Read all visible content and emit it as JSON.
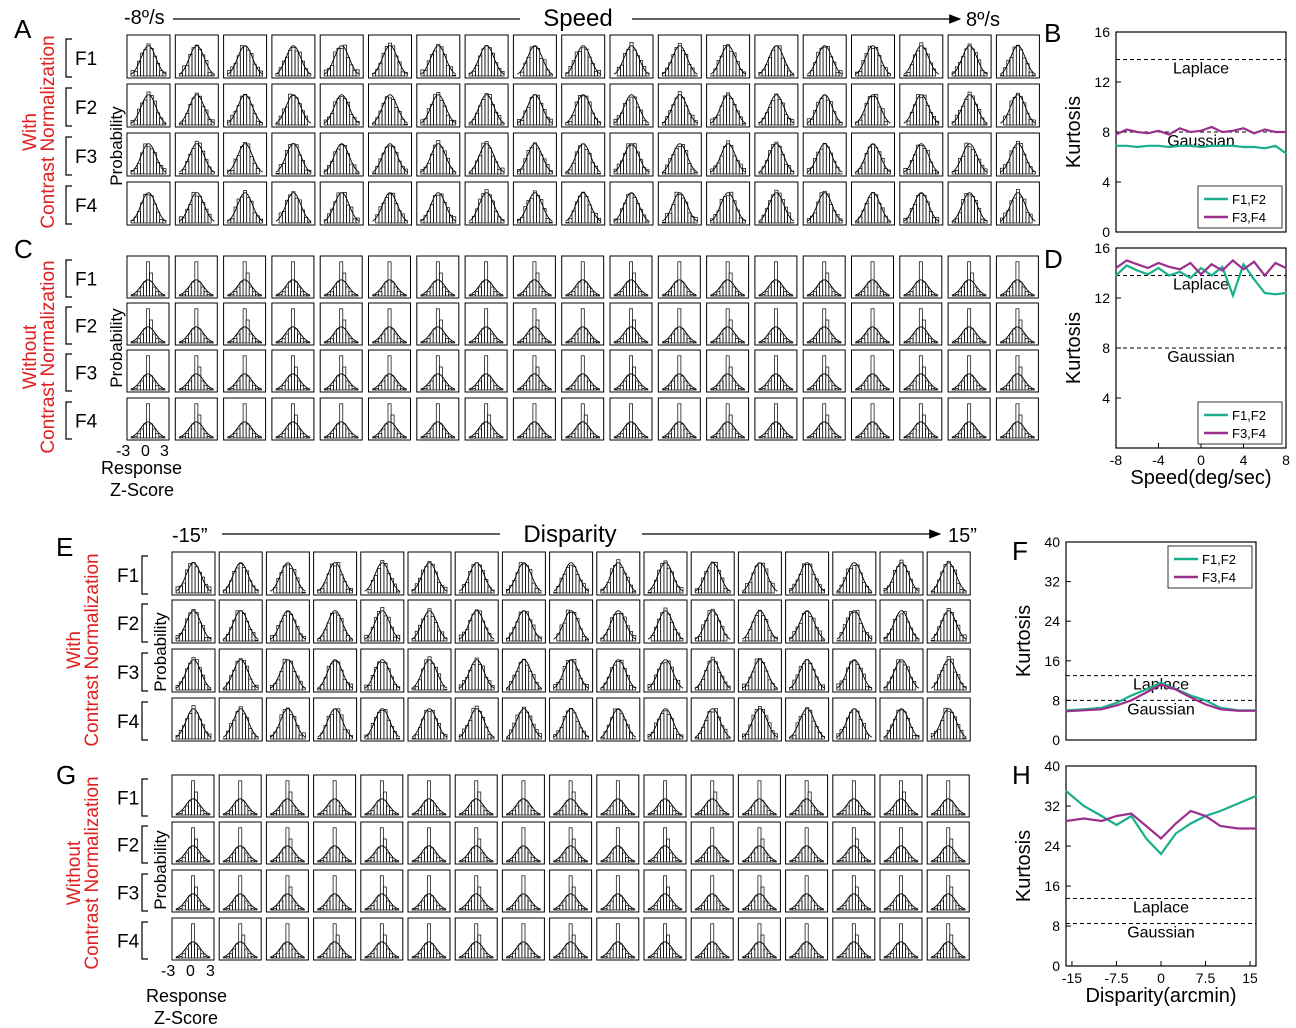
{
  "figure": {
    "panel_letters": [
      "A",
      "B",
      "C",
      "D",
      "E",
      "F",
      "G",
      "H"
    ],
    "speed_block": {
      "axis_title": "Speed",
      "left_label": "-8º/s",
      "right_label": "8º/s",
      "with_label_1": "With",
      "with_label_2": "Contrast Normalization",
      "without_label_1": "Without",
      "without_label_2": "Contrast Normalization",
      "row_labels": [
        "F1",
        "F2",
        "F3",
        "F4"
      ],
      "prob_label": "Probability",
      "ticks": [
        "-3",
        "0",
        "3"
      ],
      "xlabel_1": "Response",
      "xlabel_2": "Z-Score"
    },
    "disp_block": {
      "axis_title": "Disparity",
      "left_label": "-15”",
      "right_label": "15”",
      "with_label_1": "With",
      "with_label_2": "Contrast Normalization",
      "without_label_1": "Without",
      "without_label_2": "Contrast Normalization",
      "row_labels": [
        "F1",
        "F2",
        "F3",
        "F4"
      ],
      "prob_label": "Probability",
      "ticks": [
        "-3",
        "0",
        "3"
      ],
      "xlabel_1": "Response",
      "xlabel_2": "Z-Score"
    }
  },
  "colors": {
    "teal": "#1aaf8b",
    "purple": "#9b2f8f",
    "red": "#e02020"
  },
  "chart_data": [
    {
      "panel": "B",
      "type": "line",
      "ylabel": "Kurtosis",
      "xlabel": "",
      "xlim": [
        -8,
        8
      ],
      "ylim": [
        0,
        16
      ],
      "yticks": [
        0,
        4,
        8,
        12,
        16
      ],
      "xticks": [],
      "ref_lines": [
        {
          "label": "Laplace",
          "y": 13.8
        },
        {
          "label": "Gaussian",
          "y": 8.0
        }
      ],
      "legend": {
        "position": "bottom-right"
      },
      "series": [
        {
          "name": "F1,F2",
          "color": "#1aaf8b",
          "x": [
            -8,
            -7,
            -6,
            -5,
            -4,
            -3,
            -2,
            -1,
            0,
            1,
            2,
            3,
            4,
            5,
            6,
            7,
            8
          ],
          "y": [
            6.9,
            6.9,
            6.8,
            6.9,
            6.9,
            6.8,
            6.9,
            6.9,
            6.8,
            6.9,
            6.9,
            6.9,
            6.8,
            6.8,
            6.7,
            6.9,
            6.3
          ]
        },
        {
          "name": "F3,F4",
          "color": "#9b2f8f",
          "x": [
            -8,
            -7,
            -6,
            -5,
            -4,
            -3,
            -2,
            -1,
            0,
            1,
            2,
            3,
            4,
            5,
            6,
            7,
            8
          ],
          "y": [
            7.8,
            8.2,
            8.0,
            7.9,
            8.1,
            7.8,
            8.3,
            8.0,
            8.1,
            8.4,
            8.0,
            8.1,
            8.3,
            7.9,
            8.2,
            8.0,
            8.0
          ]
        }
      ]
    },
    {
      "panel": "D",
      "type": "line",
      "ylabel": "Kurtosis",
      "xlabel": "Speed(deg/sec)",
      "xlim": [
        -8,
        8
      ],
      "ylim": [
        0,
        16
      ],
      "yticks": [
        4,
        8,
        12,
        16
      ],
      "xticks": [
        -8,
        -4,
        0,
        4,
        8
      ],
      "ref_lines": [
        {
          "label": "Laplace",
          "y": 13.8
        },
        {
          "label": "Gaussian",
          "y": 8.0
        }
      ],
      "legend": {
        "position": "bottom-right"
      },
      "series": [
        {
          "name": "F1,F2",
          "color": "#1aaf8b",
          "x": [
            -8,
            -7,
            -6,
            -5,
            -4,
            -3,
            -2,
            -1,
            0,
            1,
            2,
            3,
            4,
            5,
            6,
            7,
            8
          ],
          "y": [
            13.8,
            14.6,
            14.2,
            13.9,
            14.4,
            13.8,
            14.1,
            13.6,
            14.4,
            13.8,
            14.5,
            12.2,
            14.7,
            13.5,
            12.4,
            12.3,
            12.4
          ]
        },
        {
          "name": "F3,F4",
          "color": "#9b2f8f",
          "x": [
            -8,
            -7,
            -6,
            -5,
            -4,
            -3,
            -2,
            -1,
            0,
            1,
            2,
            3,
            4,
            5,
            6,
            7,
            8
          ],
          "y": [
            14.4,
            15.0,
            14.7,
            14.4,
            14.8,
            14.5,
            14.3,
            14.8,
            13.9,
            14.7,
            14.2,
            15.0,
            14.3,
            14.9,
            13.8,
            14.8,
            14.4
          ]
        }
      ]
    },
    {
      "panel": "F",
      "type": "line",
      "ylabel": "Kurtosis",
      "xlabel": "",
      "xlim": [
        -16,
        16
      ],
      "ylim": [
        0,
        40
      ],
      "yticks": [
        0,
        8,
        16,
        24,
        32,
        40
      ],
      "xticks": [],
      "ref_lines": [
        {
          "label": "Laplace",
          "y": 13.0
        },
        {
          "label": "Gaussian",
          "y": 8.0
        }
      ],
      "legend": {
        "position": "top-right"
      },
      "series": [
        {
          "name": "F1,F2",
          "color": "#1aaf8b",
          "x": [
            -16,
            -13,
            -10,
            -7.5,
            -5,
            -2.5,
            0,
            2.5,
            5,
            7.5,
            10,
            13,
            16
          ],
          "y": [
            6.0,
            6.2,
            6.5,
            7.5,
            9.0,
            10.2,
            11.6,
            10.3,
            9.0,
            8.0,
            6.5,
            6.0,
            6.0
          ]
        },
        {
          "name": "F3,F4",
          "color": "#9b2f8f",
          "x": [
            -16,
            -13,
            -10,
            -7.5,
            -5,
            -2.5,
            0,
            2.5,
            5,
            7.5,
            10,
            13,
            16
          ],
          "y": [
            5.8,
            6.0,
            6.2,
            7.0,
            8.0,
            9.6,
            11.2,
            10.2,
            8.6,
            7.2,
            6.2,
            5.9,
            5.9
          ]
        }
      ]
    },
    {
      "panel": "H",
      "type": "line",
      "ylabel": "Kurtosis",
      "xlabel": "Disparity(arcmin)",
      "xlim": [
        -16,
        16
      ],
      "ylim": [
        0,
        40
      ],
      "yticks": [
        0,
        8,
        16,
        24,
        32,
        40
      ],
      "xticks": [
        -15,
        -7.5,
        0,
        7.5,
        15
      ],
      "ref_lines": [
        {
          "label": "Laplace",
          "y": 13.5
        },
        {
          "label": "Gaussian",
          "y": 8.5
        }
      ],
      "legend": null,
      "series": [
        {
          "name": "F1,F2",
          "color": "#1aaf8b",
          "x": [
            -16,
            -13,
            -10,
            -7.5,
            -5,
            -2.5,
            0,
            2.5,
            5,
            7.5,
            10,
            13,
            16
          ],
          "y": [
            35.0,
            32.0,
            30.0,
            28.2,
            30.0,
            25.5,
            22.4,
            26.5,
            28.5,
            30.0,
            31.0,
            32.5,
            34.0
          ]
        },
        {
          "name": "F3,F4",
          "color": "#9b2f8f",
          "x": [
            -16,
            -13,
            -10,
            -7.5,
            -5,
            -2.5,
            0,
            2.5,
            5,
            7.5,
            10,
            13,
            16
          ],
          "y": [
            29.0,
            29.5,
            29.0,
            30.0,
            30.5,
            28.0,
            25.5,
            28.5,
            31.0,
            30.0,
            28.0,
            27.5,
            27.5
          ]
        }
      ]
    }
  ]
}
